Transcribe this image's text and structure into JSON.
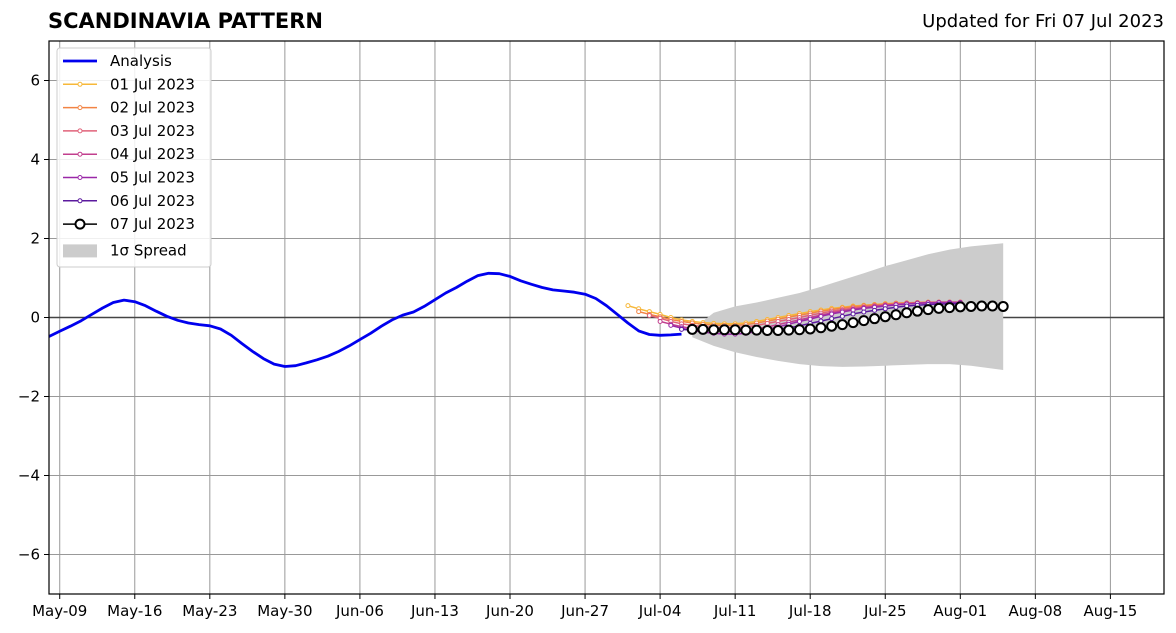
{
  "header": {
    "title": "SCANDINAVIA PATTERN",
    "updated": "Updated for Fri 07 Jul 2023"
  },
  "chart_data": {
    "type": "line",
    "title": "SCANDINAVIA PATTERN",
    "xlabel": "",
    "ylabel": "",
    "x_type": "date",
    "xlim": [
      "2023-05-08",
      "2023-08-20"
    ],
    "ylim": [
      -7,
      7
    ],
    "x_ticks": [
      {
        "date": "2023-05-09",
        "label": "May-09"
      },
      {
        "date": "2023-05-16",
        "label": "May-16"
      },
      {
        "date": "2023-05-23",
        "label": "May-23"
      },
      {
        "date": "2023-05-30",
        "label": "May-30"
      },
      {
        "date": "2023-06-06",
        "label": "Jun-06"
      },
      {
        "date": "2023-06-13",
        "label": "Jun-13"
      },
      {
        "date": "2023-06-20",
        "label": "Jun-20"
      },
      {
        "date": "2023-06-27",
        "label": "Jun-27"
      },
      {
        "date": "2023-07-04",
        "label": "Jul-04"
      },
      {
        "date": "2023-07-11",
        "label": "Jul-11"
      },
      {
        "date": "2023-07-18",
        "label": "Jul-18"
      },
      {
        "date": "2023-07-25",
        "label": "Jul-25"
      },
      {
        "date": "2023-08-01",
        "label": "Aug-01"
      },
      {
        "date": "2023-08-08",
        "label": "Aug-08"
      },
      {
        "date": "2023-08-15",
        "label": "Aug-15"
      }
    ],
    "y_ticks": [
      {
        "value": 6,
        "label": "6"
      },
      {
        "value": 4,
        "label": "4"
      },
      {
        "value": 2,
        "label": "2"
      },
      {
        "value": 0,
        "label": "0"
      },
      {
        "value": -2,
        "label": "−2"
      },
      {
        "value": -4,
        "label": "−4"
      },
      {
        "value": -6,
        "label": "−6"
      }
    ],
    "grid": true,
    "legend_position": "top-left",
    "zero_line": 0,
    "series": [
      {
        "name": "Analysis",
        "color": "#0000ee",
        "style": "analysis",
        "x": [
          "2023-05-08",
          "2023-05-09",
          "2023-05-10",
          "2023-05-11",
          "2023-05-12",
          "2023-05-13",
          "2023-05-14",
          "2023-05-15",
          "2023-05-16",
          "2023-05-17",
          "2023-05-18",
          "2023-05-19",
          "2023-05-20",
          "2023-05-21",
          "2023-05-22",
          "2023-05-23",
          "2023-05-24",
          "2023-05-25",
          "2023-05-26",
          "2023-05-27",
          "2023-05-28",
          "2023-05-29",
          "2023-05-30",
          "2023-05-31",
          "2023-06-01",
          "2023-06-02",
          "2023-06-03",
          "2023-06-04",
          "2023-06-05",
          "2023-06-06",
          "2023-06-07",
          "2023-06-08",
          "2023-06-09",
          "2023-06-10",
          "2023-06-11",
          "2023-06-12",
          "2023-06-13",
          "2023-06-14",
          "2023-06-15",
          "2023-06-16",
          "2023-06-17",
          "2023-06-18",
          "2023-06-19",
          "2023-06-20",
          "2023-06-21",
          "2023-06-22",
          "2023-06-23",
          "2023-06-24",
          "2023-06-25",
          "2023-06-26",
          "2023-06-27",
          "2023-06-28",
          "2023-06-29",
          "2023-06-30",
          "2023-07-01",
          "2023-07-02",
          "2023-07-03",
          "2023-07-04",
          "2023-07-05",
          "2023-07-06"
        ],
        "values": [
          -0.48,
          -0.35,
          -0.22,
          -0.08,
          0.08,
          0.24,
          0.38,
          0.44,
          0.4,
          0.3,
          0.16,
          0.03,
          -0.07,
          -0.14,
          -0.18,
          -0.21,
          -0.29,
          -0.45,
          -0.66,
          -0.86,
          -1.04,
          -1.18,
          -1.24,
          -1.22,
          -1.15,
          -1.07,
          -0.98,
          -0.86,
          -0.72,
          -0.56,
          -0.4,
          -0.22,
          -0.06,
          0.06,
          0.14,
          0.28,
          0.45,
          0.62,
          0.76,
          0.92,
          1.06,
          1.12,
          1.11,
          1.04,
          0.93,
          0.84,
          0.76,
          0.7,
          0.67,
          0.64,
          0.59,
          0.48,
          0.3,
          0.08,
          -0.14,
          -0.34,
          -0.43,
          -0.45,
          -0.44,
          -0.42
        ]
      },
      {
        "name": "01 Jul 2023",
        "color": "#f7b839",
        "style": "forecast",
        "x": [
          "2023-07-01",
          "2023-07-02",
          "2023-07-03",
          "2023-07-04",
          "2023-07-05",
          "2023-07-06",
          "2023-07-07",
          "2023-07-08",
          "2023-07-09",
          "2023-07-10",
          "2023-07-11",
          "2023-07-12",
          "2023-07-13",
          "2023-07-14",
          "2023-07-15",
          "2023-07-16",
          "2023-07-17",
          "2023-07-18",
          "2023-07-19",
          "2023-07-20",
          "2023-07-21",
          "2023-07-22",
          "2023-07-23",
          "2023-07-24",
          "2023-07-25",
          "2023-07-26",
          "2023-07-27",
          "2023-07-28",
          "2023-07-29",
          "2023-07-30",
          "2023-07-31"
        ],
        "values": [
          0.3,
          0.22,
          0.15,
          0.08,
          0.0,
          -0.06,
          -0.1,
          -0.13,
          -0.15,
          -0.16,
          -0.16,
          -0.14,
          -0.1,
          -0.05,
          0.0,
          0.05,
          0.1,
          0.15,
          0.19,
          0.23,
          0.26,
          0.29,
          0.31,
          0.33,
          0.35,
          0.36,
          0.37,
          0.38,
          0.38,
          0.38,
          0.38
        ]
      },
      {
        "name": "02 Jul 2023",
        "color": "#f28444",
        "style": "forecast",
        "x": [
          "2023-07-02",
          "2023-07-03",
          "2023-07-04",
          "2023-07-05",
          "2023-07-06",
          "2023-07-07",
          "2023-07-08",
          "2023-07-09",
          "2023-07-10",
          "2023-07-11",
          "2023-07-12",
          "2023-07-13",
          "2023-07-14",
          "2023-07-15",
          "2023-07-16",
          "2023-07-17",
          "2023-07-18",
          "2023-07-19",
          "2023-07-20",
          "2023-07-21",
          "2023-07-22",
          "2023-07-23",
          "2023-07-24",
          "2023-07-25",
          "2023-07-26",
          "2023-07-27",
          "2023-07-28",
          "2023-07-29",
          "2023-07-30",
          "2023-07-31",
          "2023-08-01"
        ],
        "values": [
          0.15,
          0.08,
          0.02,
          -0.05,
          -0.1,
          -0.14,
          -0.17,
          -0.19,
          -0.2,
          -0.2,
          -0.18,
          -0.14,
          -0.09,
          -0.04,
          0.01,
          0.06,
          0.11,
          0.16,
          0.2,
          0.24,
          0.27,
          0.3,
          0.32,
          0.34,
          0.36,
          0.37,
          0.38,
          0.39,
          0.39,
          0.39,
          0.39
        ]
      },
      {
        "name": "03 Jul 2023",
        "color": "#e0627a",
        "style": "forecast",
        "x": [
          "2023-07-03",
          "2023-07-04",
          "2023-07-05",
          "2023-07-06",
          "2023-07-07",
          "2023-07-08",
          "2023-07-09",
          "2023-07-10",
          "2023-07-11",
          "2023-07-12",
          "2023-07-13",
          "2023-07-14",
          "2023-07-15",
          "2023-07-16",
          "2023-07-17",
          "2023-07-18",
          "2023-07-19",
          "2023-07-20",
          "2023-07-21",
          "2023-07-22",
          "2023-07-23",
          "2023-07-24",
          "2023-07-25",
          "2023-07-26",
          "2023-07-27",
          "2023-07-28",
          "2023-07-29",
          "2023-07-30",
          "2023-07-31",
          "2023-08-01"
        ],
        "values": [
          0.05,
          -0.02,
          -0.1,
          -0.16,
          -0.2,
          -0.23,
          -0.25,
          -0.26,
          -0.26,
          -0.24,
          -0.2,
          -0.15,
          -0.1,
          -0.05,
          0.0,
          0.06,
          0.11,
          0.16,
          0.2,
          0.24,
          0.27,
          0.3,
          0.32,
          0.34,
          0.36,
          0.37,
          0.38,
          0.39,
          0.39,
          0.39
        ]
      },
      {
        "name": "04 Jul 2023",
        "color": "#c23f8e",
        "style": "forecast",
        "x": [
          "2023-07-04",
          "2023-07-05",
          "2023-07-06",
          "2023-07-07",
          "2023-07-08",
          "2023-07-09",
          "2023-07-10",
          "2023-07-11",
          "2023-07-12",
          "2023-07-13",
          "2023-07-14",
          "2023-07-15",
          "2023-07-16",
          "2023-07-17",
          "2023-07-18",
          "2023-07-19",
          "2023-07-20",
          "2023-07-21",
          "2023-07-22",
          "2023-07-23",
          "2023-07-24",
          "2023-07-25",
          "2023-07-26",
          "2023-07-27",
          "2023-07-28",
          "2023-07-29",
          "2023-07-30",
          "2023-07-31",
          "2023-08-01"
        ],
        "values": [
          -0.1,
          -0.17,
          -0.23,
          -0.28,
          -0.32,
          -0.34,
          -0.35,
          -0.35,
          -0.33,
          -0.29,
          -0.24,
          -0.18,
          -0.12,
          -0.06,
          0.0,
          0.06,
          0.12,
          0.17,
          0.21,
          0.25,
          0.28,
          0.31,
          0.33,
          0.35,
          0.36,
          0.37,
          0.38,
          0.38,
          0.38
        ]
      },
      {
        "name": "05 Jul 2023",
        "color": "#9a28a8",
        "style": "forecast",
        "x": [
          "2023-07-05",
          "2023-07-06",
          "2023-07-07",
          "2023-07-08",
          "2023-07-09",
          "2023-07-10",
          "2023-07-11",
          "2023-07-12",
          "2023-07-13",
          "2023-07-14",
          "2023-07-15",
          "2023-07-16",
          "2023-07-17",
          "2023-07-18",
          "2023-07-19",
          "2023-07-20",
          "2023-07-21",
          "2023-07-22",
          "2023-07-23",
          "2023-07-24",
          "2023-07-25",
          "2023-07-26",
          "2023-07-27",
          "2023-07-28",
          "2023-07-29",
          "2023-07-30",
          "2023-07-31",
          "2023-08-01"
        ],
        "values": [
          -0.2,
          -0.27,
          -0.33,
          -0.37,
          -0.4,
          -0.42,
          -0.42,
          -0.4,
          -0.36,
          -0.3,
          -0.24,
          -0.17,
          -0.1,
          -0.04,
          0.03,
          0.09,
          0.14,
          0.19,
          0.23,
          0.26,
          0.29,
          0.32,
          0.34,
          0.36,
          0.37,
          0.38,
          0.38,
          0.38
        ]
      },
      {
        "name": "06 Jul 2023",
        "color": "#5b1a9e",
        "style": "forecast",
        "x": [
          "2023-07-06",
          "2023-07-07",
          "2023-07-08",
          "2023-07-09",
          "2023-07-10",
          "2023-07-11",
          "2023-07-12",
          "2023-07-13",
          "2023-07-14",
          "2023-07-15",
          "2023-07-16",
          "2023-07-17",
          "2023-07-18",
          "2023-07-19",
          "2023-07-20",
          "2023-07-21",
          "2023-07-22",
          "2023-07-23",
          "2023-07-24",
          "2023-07-25",
          "2023-07-26",
          "2023-07-27",
          "2023-07-28",
          "2023-07-29",
          "2023-07-30",
          "2023-07-31",
          "2023-08-01"
        ],
        "values": [
          -0.3,
          -0.32,
          -0.33,
          -0.33,
          -0.33,
          -0.33,
          -0.34,
          -0.34,
          -0.33,
          -0.3,
          -0.26,
          -0.21,
          -0.15,
          -0.09,
          -0.03,
          0.03,
          0.09,
          0.14,
          0.18,
          0.22,
          0.26,
          0.29,
          0.31,
          0.33,
          0.34,
          0.35,
          0.35
        ]
      },
      {
        "name": "07 Jul 2023",
        "color": "#000000",
        "style": "latest",
        "x": [
          "2023-07-07",
          "2023-07-08",
          "2023-07-09",
          "2023-07-10",
          "2023-07-11",
          "2023-07-12",
          "2023-07-13",
          "2023-07-14",
          "2023-07-15",
          "2023-07-16",
          "2023-07-17",
          "2023-07-18",
          "2023-07-19",
          "2023-07-20",
          "2023-07-21",
          "2023-07-22",
          "2023-07-23",
          "2023-07-24",
          "2023-07-25",
          "2023-07-26",
          "2023-07-27",
          "2023-07-28",
          "2023-07-29",
          "2023-07-30",
          "2023-07-31",
          "2023-08-01",
          "2023-08-02",
          "2023-08-03",
          "2023-08-04",
          "2023-08-05"
        ],
        "values": [
          -0.3,
          -0.3,
          -0.31,
          -0.31,
          -0.31,
          -0.32,
          -0.32,
          -0.33,
          -0.33,
          -0.32,
          -0.31,
          -0.29,
          -0.26,
          -0.22,
          -0.18,
          -0.13,
          -0.08,
          -0.03,
          0.02,
          0.07,
          0.12,
          0.16,
          0.2,
          0.23,
          0.25,
          0.27,
          0.28,
          0.29,
          0.29,
          0.28
        ]
      }
    ],
    "spread": {
      "name": "1σ Spread",
      "color": "#cccccc",
      "x": [
        "2023-07-07",
        "2023-07-09",
        "2023-07-11",
        "2023-07-13",
        "2023-07-15",
        "2023-07-17",
        "2023-07-19",
        "2023-07-21",
        "2023-07-23",
        "2023-07-25",
        "2023-07-27",
        "2023-07-29",
        "2023-07-31",
        "2023-08-02",
        "2023-08-05"
      ],
      "upper": [
        -0.3,
        0.12,
        0.28,
        0.38,
        0.5,
        0.62,
        0.78,
        0.95,
        1.12,
        1.3,
        1.45,
        1.6,
        1.72,
        1.8,
        1.88
      ],
      "lower": [
        -0.5,
        -0.72,
        -0.88,
        -1.0,
        -1.1,
        -1.18,
        -1.23,
        -1.25,
        -1.24,
        -1.22,
        -1.2,
        -1.18,
        -1.18,
        -1.22,
        -1.33
      ]
    },
    "legend": {
      "entries": [
        "Analysis",
        "01 Jul 2023",
        "02 Jul 2023",
        "03 Jul 2023",
        "04 Jul 2023",
        "05 Jul 2023",
        "06 Jul 2023",
        "07 Jul 2023",
        "1σ Spread"
      ]
    }
  }
}
